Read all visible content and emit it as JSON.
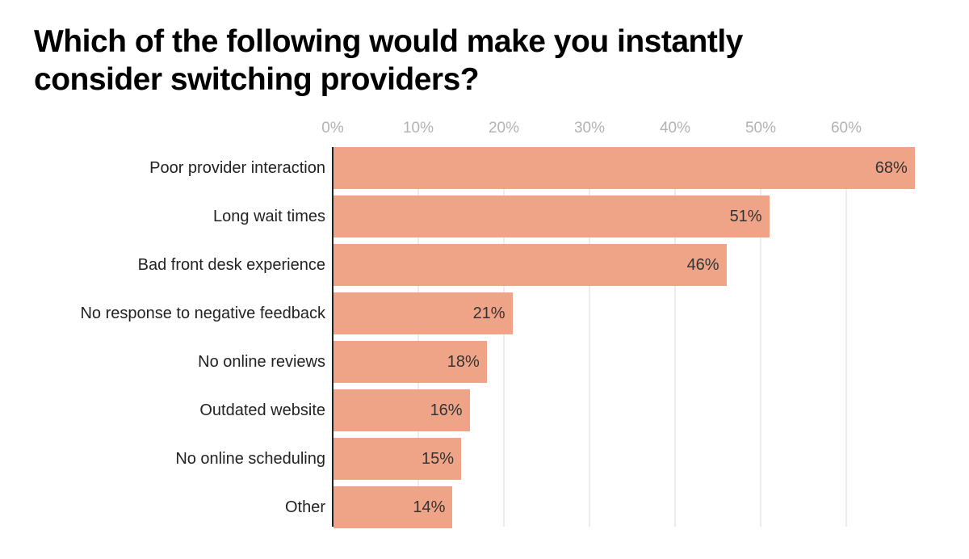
{
  "chart_data": {
    "type": "bar",
    "orientation": "horizontal",
    "title": "Which of the following would make you instantly consider switching providers?",
    "title_lines": [
      "Which of the following would make you instantly",
      "consider switching providers?"
    ],
    "xlabel": "",
    "ylabel": "",
    "xlim": [
      0,
      68
    ],
    "x_ticks": [
      "0%",
      "10%",
      "20%",
      "30%",
      "40%",
      "50%",
      "60%"
    ],
    "grid": true,
    "legend": null,
    "bar_color": "#f0a487",
    "categories": [
      "Poor provider interaction",
      "Long wait times",
      "Bad front desk experience",
      "No response to negative feedback",
      "No online reviews",
      "Outdated website",
      "No online scheduling",
      "Other"
    ],
    "values": [
      68,
      51,
      46,
      21,
      18,
      16,
      15,
      14
    ],
    "value_labels": [
      "68%",
      "51%",
      "46%",
      "21%",
      "18%",
      "16%",
      "15%",
      "14%"
    ]
  }
}
